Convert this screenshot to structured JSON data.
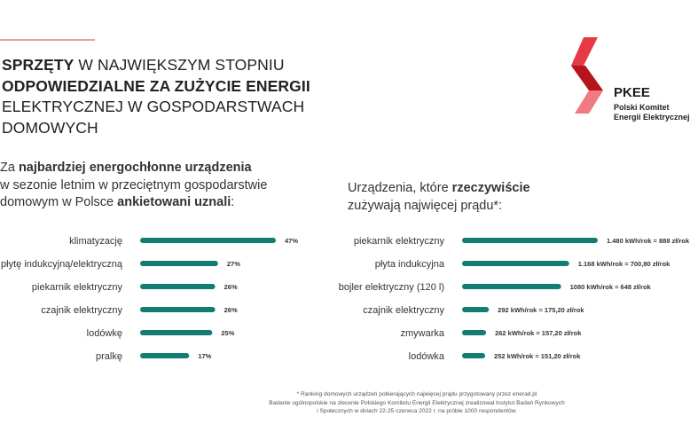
{
  "headline": {
    "line1_bold": "SPRZĘTY",
    "line1_rest": " W NAJWIĘKSZYM STOPNIU",
    "line2": "ODPOWIEDZIALNE ZA ZUŻYCIE ENERGII",
    "line3": "ELEKTRYCZNEJ W GOSPODARSTWACH",
    "line4": "DOMOWYCH"
  },
  "logo": {
    "name": "PKEE",
    "sub1": "Polski Komitet",
    "sub2": "Energii Elektrycznej",
    "colors": [
      "#e63946",
      "#b7131b",
      "#f07a7f"
    ]
  },
  "left_subtitle": {
    "p1": "Za ",
    "b1": "najbardziej energochłonne urządzenia",
    "p2": "w sezonie letnim w przeciętnym gospodarstwie",
    "p3": "domowym w Polsce ",
    "b2": "ankietowani uznali",
    "p4": ":"
  },
  "right_subtitle": {
    "p1": "Urządzenia, które ",
    "b1": "rzeczywiście",
    "p2": "zużywają najwięcej prądu*:"
  },
  "bar_color": "#117d73",
  "chart_data": [
    {
      "type": "bar",
      "orientation": "horizontal",
      "categories": [
        "klimatyzację",
        "płytę indukcyjną/elektryczną",
        "piekarnik elektryczny",
        "czajnik elektryczny",
        "lodówkę",
        "pralkę"
      ],
      "values": [
        47,
        27,
        26,
        26,
        25,
        17
      ],
      "value_labels": [
        "47%",
        "27%",
        "26%",
        "26%",
        "25%",
        "17%"
      ],
      "unit": "%",
      "xlim": [
        0,
        47
      ]
    },
    {
      "type": "bar",
      "orientation": "horizontal",
      "categories": [
        "piekarnik elektryczny",
        "płyta indukcyjna",
        "bojler elektryczny (120 l)",
        "czajnik elektryczny",
        "zmywarka",
        "lodówka"
      ],
      "values": [
        1480,
        1168,
        1080,
        292,
        262,
        252
      ],
      "value_labels": [
        "1.480 kWh/rok = 888 zł/rok",
        "1.168 kWh/rok = 700,80 zł/rok",
        "1080 kWh/rok = 648 zł/rok",
        "292 kWh/rok = 175,20 zł/rok",
        "262 kWh/rok = 157,20 zł/rok",
        "252 kWh/rok = 151,20 zł/rok"
      ],
      "unit": "kWh/rok",
      "xlim": [
        0,
        1480
      ]
    }
  ],
  "footnote": {
    "line1": "* Ranking domowych urządzeń pobierających najwięcej prądu przygotowany przez enerad.pl",
    "line2": "Badanie ogólnopolskie na zlecenie Polskiego Komitetu Energii Elektrycznej zrealizował Instytut Badań Rynkowych",
    "line3": "i Społecznych w dniach 22-25 czerwca 2022 r. na próbie 1000 respondentów."
  }
}
